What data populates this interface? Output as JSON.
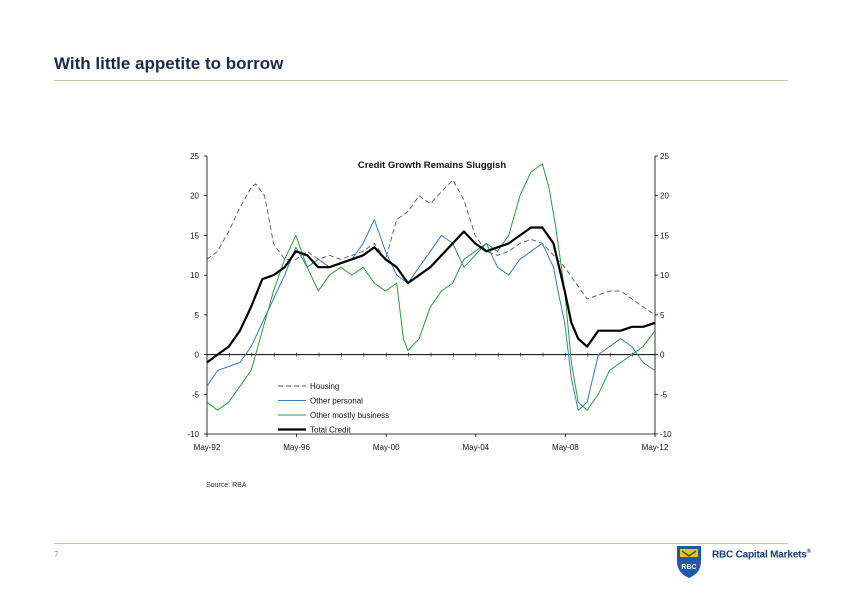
{
  "slide": {
    "title": "With little appetite to borrow",
    "source": "Source: RBA",
    "page_number": "7",
    "logo_text": "RBC Capital Markets",
    "logo_trademark": "®",
    "logo_badge": "RBC"
  },
  "colors": {
    "housing": "#555555",
    "other_personal": "#3a7ab8",
    "business": "#2e9a3e",
    "total": "#000000"
  },
  "chart_data": {
    "type": "line",
    "title": "Credit Growth Remains Sluggish",
    "xlabel": "",
    "ylabel": "",
    "ylim": [
      -10,
      25
    ],
    "yticks": [
      "25",
      "20",
      "15",
      "10",
      "5",
      "0",
      "-5",
      "-10"
    ],
    "y2ticks": [
      "25",
      "20",
      "15",
      "10",
      "5",
      "0",
      "-5",
      "-10"
    ],
    "xlim": [
      1992.33,
      2012.33
    ],
    "xticks": [
      {
        "x": 1992.33,
        "label": "May-92"
      },
      {
        "x": 1996.33,
        "label": "May-96"
      },
      {
        "x": 2000.33,
        "label": "May-00"
      },
      {
        "x": 2004.33,
        "label": "May-04"
      },
      {
        "x": 2008.33,
        "label": "May-08"
      },
      {
        "x": 2012.33,
        "label": "May-12"
      }
    ],
    "legend_position": "bottom-center",
    "series": [
      {
        "name": "Housing",
        "style": "dashed",
        "x": [
          1992.33,
          1992.8,
          1993.3,
          1993.8,
          1994.3,
          1994.5,
          1994.9,
          1995.3,
          1995.8,
          1996.3,
          1996.8,
          1997.3,
          1997.8,
          1998.3,
          1998.8,
          1999.3,
          1999.8,
          2000.3,
          2000.8,
          2001.3,
          2001.8,
          2002.3,
          2002.8,
          2003.3,
          2003.8,
          2004.3,
          2004.8,
          2005.3,
          2005.8,
          2006.3,
          2006.8,
          2007.3,
          2007.8,
          2008.3,
          2008.8,
          2009.3,
          2009.8,
          2010.3,
          2010.8,
          2011.3,
          2011.8,
          2012.33
        ],
        "y": [
          12,
          13,
          15.5,
          18.5,
          21,
          21.5,
          20,
          14,
          12,
          12,
          13,
          12,
          12.5,
          12,
          12.5,
          13,
          14,
          12,
          17,
          18,
          20,
          19,
          20.5,
          22,
          19.5,
          15,
          13,
          12.5,
          13,
          14,
          14.5,
          14,
          12.5,
          11,
          9,
          7,
          7.5,
          8,
          8,
          7,
          6,
          5
        ]
      },
      {
        "name": "Other personal",
        "style": "solid",
        "x": [
          1992.33,
          1992.8,
          1993.3,
          1993.8,
          1994.3,
          1994.8,
          1995.3,
          1995.8,
          1996.3,
          1996.8,
          1997.3,
          1997.8,
          1998.3,
          1998.8,
          1999.3,
          1999.8,
          2000.3,
          2000.8,
          2001.3,
          2001.8,
          2002.3,
          2002.8,
          2003.3,
          2003.8,
          2004.3,
          2004.8,
          2005.3,
          2005.8,
          2006.3,
          2006.8,
          2007.3,
          2007.8,
          2008.0,
          2008.3,
          2008.6,
          2008.9,
          2009.3,
          2009.8,
          2010.3,
          2010.8,
          2011.3,
          2011.8,
          2012.33
        ],
        "y": [
          -4,
          -2,
          -1.5,
          -1,
          1,
          4,
          7,
          10,
          13.5,
          11,
          12,
          11,
          11.5,
          12,
          14,
          17,
          13,
          10,
          9,
          11,
          13,
          15,
          14,
          11,
          12.5,
          14,
          11,
          10,
          12,
          13,
          14,
          11,
          8,
          4,
          -3,
          -7,
          -6,
          0,
          1,
          2,
          1,
          -1,
          -2
        ]
      },
      {
        "name": "Other mostly business",
        "style": "solid",
        "x": [
          1992.33,
          1992.8,
          1993.3,
          1993.8,
          1994.3,
          1994.8,
          1995.3,
          1995.8,
          1996.3,
          1996.8,
          1997.3,
          1997.8,
          1998.3,
          1998.8,
          1999.3,
          1999.8,
          2000.3,
          2000.8,
          2001.1,
          2001.3,
          2001.8,
          2002.3,
          2002.8,
          2003.3,
          2003.8,
          2004.3,
          2004.8,
          2005.3,
          2005.8,
          2006.3,
          2006.8,
          2007.3,
          2007.6,
          2007.9,
          2008.3,
          2008.6,
          2008.9,
          2009.3,
          2009.8,
          2010.3,
          2010.8,
          2011.3,
          2011.8,
          2012.33
        ],
        "y": [
          -6,
          -7,
          -6,
          -4,
          -2,
          3,
          8,
          12,
          15,
          11,
          8,
          10,
          11,
          10,
          11,
          9,
          8,
          9,
          2,
          0.5,
          2,
          6,
          8,
          9,
          12,
          13,
          14,
          13,
          15,
          20,
          23,
          24,
          21,
          16,
          8,
          -1,
          -6,
          -7,
          -5,
          -2,
          -1,
          0,
          1,
          3
        ]
      },
      {
        "name": "Total Credit",
        "style": "solid",
        "x": [
          1992.33,
          1992.8,
          1993.3,
          1993.8,
          1994.3,
          1994.8,
          1995.3,
          1995.8,
          1996.3,
          1996.8,
          1997.3,
          1997.8,
          1998.3,
          1998.8,
          1999.3,
          1999.8,
          2000.3,
          2000.8,
          2001.3,
          2001.8,
          2002.3,
          2002.8,
          2003.3,
          2003.8,
          2004.3,
          2004.8,
          2005.3,
          2005.8,
          2006.3,
          2006.8,
          2007.3,
          2007.8,
          2008.3,
          2008.6,
          2008.9,
          2009.3,
          2009.8,
          2010.3,
          2010.8,
          2011.3,
          2011.8,
          2012.33
        ],
        "y": [
          -1,
          0,
          1,
          3,
          6,
          9.5,
          10,
          11,
          13,
          12.5,
          11,
          11,
          11.5,
          12,
          12.5,
          13.5,
          12,
          11,
          9,
          10,
          11,
          12.5,
          14,
          15.5,
          14,
          13,
          13.5,
          14,
          15,
          16,
          16,
          14,
          8,
          4,
          2,
          1,
          3,
          3,
          3,
          3.5,
          3.5,
          4
        ]
      }
    ]
  }
}
